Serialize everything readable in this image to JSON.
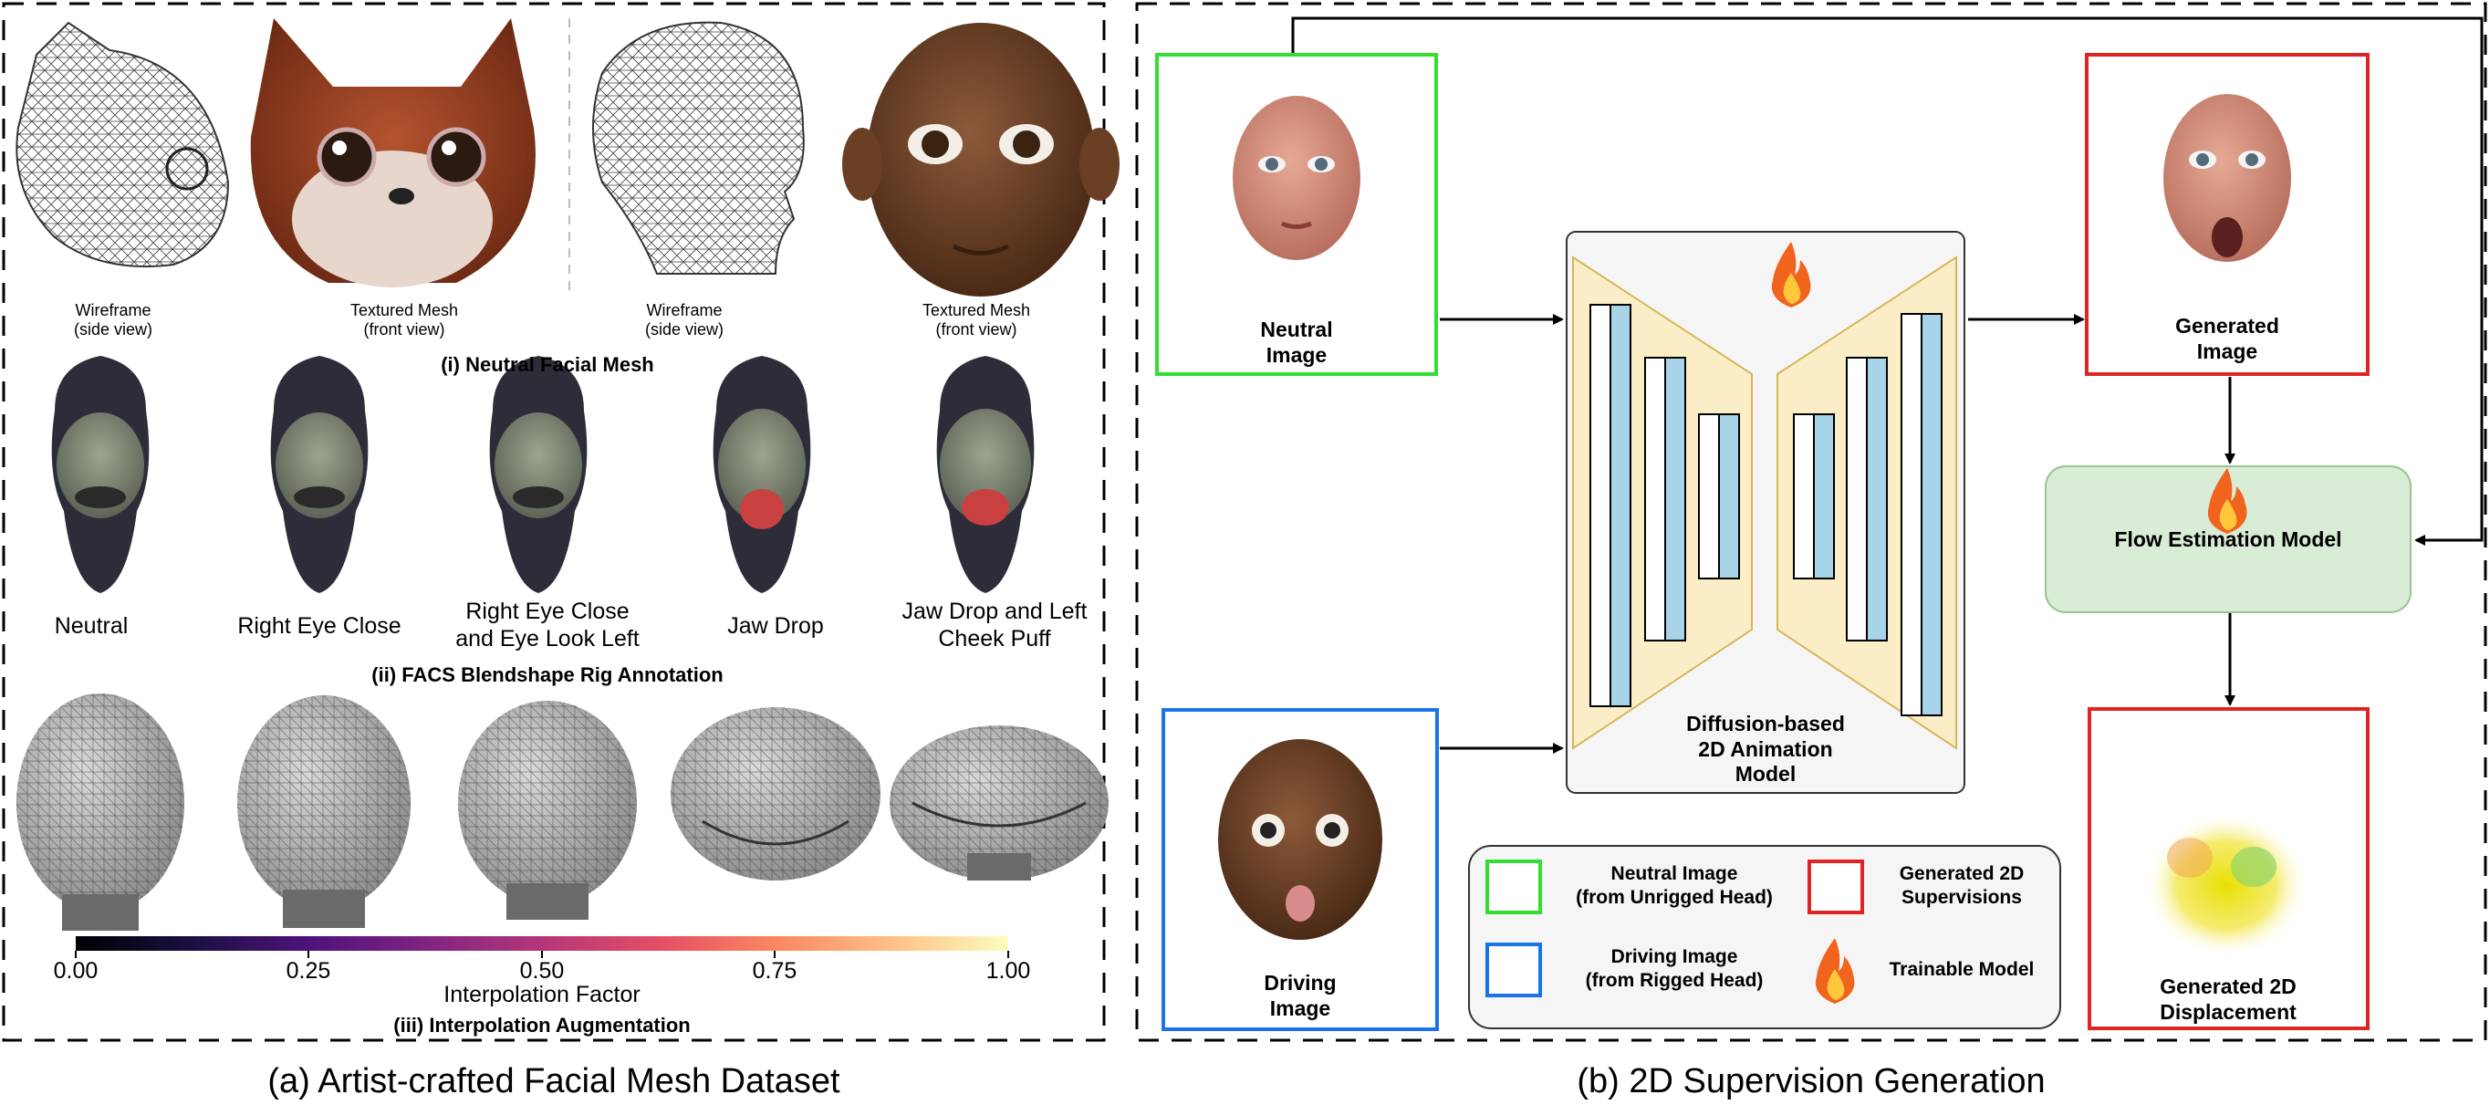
{
  "panel_a": {
    "caption": "(a) Artist-crafted Facial Mesh Dataset",
    "neutral_mesh": {
      "items": [
        {
          "line1": "Wireframe",
          "line2": "(side view)"
        },
        {
          "line1": "Textured Mesh",
          "line2": "(front view)"
        },
        {
          "line1": "Wireframe",
          "line2": "(side view)"
        },
        {
          "line1": "Textured Mesh",
          "line2": "(front view)"
        }
      ],
      "caption": "(i) Neutral Facial Mesh"
    },
    "facs": {
      "expressions": [
        {
          "line1": "Neutral",
          "line2": ""
        },
        {
          "line1": "Right Eye Close",
          "line2": ""
        },
        {
          "line1": "Right Eye Close",
          "line2": "and Eye Look Left"
        },
        {
          "line1": "Jaw Drop",
          "line2": ""
        },
        {
          "line1": "Jaw Drop and Left",
          "line2": "Cheek Puff"
        }
      ],
      "caption": "(ii) FACS Blendshape Rig Annotation"
    },
    "interpolation": {
      "ticks": [
        "0.00",
        "0.25",
        "0.50",
        "0.75",
        "1.00"
      ],
      "axis_label": "Interpolation Factor",
      "caption": "(iii) Interpolation Augmentation"
    }
  },
  "panel_b": {
    "caption": "(b) 2D Supervision Generation",
    "neutral_image": {
      "line1": "Neutral",
      "line2": "Image"
    },
    "driving_image": {
      "line1": "Driving",
      "line2": "Image"
    },
    "diffusion_model": {
      "line1": "Diffusion-based",
      "line2": "2D Animation",
      "line3": "Model"
    },
    "generated_image": {
      "line1": "Generated",
      "line2": "Image"
    },
    "flow_model": {
      "label": "Flow Estimation Model"
    },
    "generated_displacement": {
      "line1": "Generated 2D",
      "line2": "Displacement"
    },
    "legend": {
      "neutral": {
        "line1": "Neutral Image",
        "line2": "(from Unrigged Head)"
      },
      "driving": {
        "line1": "Driving Image",
        "line2": "(from Rigged Head)"
      },
      "generated": {
        "line1": "Generated 2D",
        "line2": "Supervisions"
      },
      "trainable": {
        "label": "Trainable Model"
      }
    },
    "colors": {
      "neutral": "#33dd33",
      "driving": "#1a73e8",
      "generated": "#e02424",
      "flow_fill": "#d9ecd6",
      "unet_fill": "#fbeec6",
      "unet_bar": "#a8d4ea"
    }
  }
}
